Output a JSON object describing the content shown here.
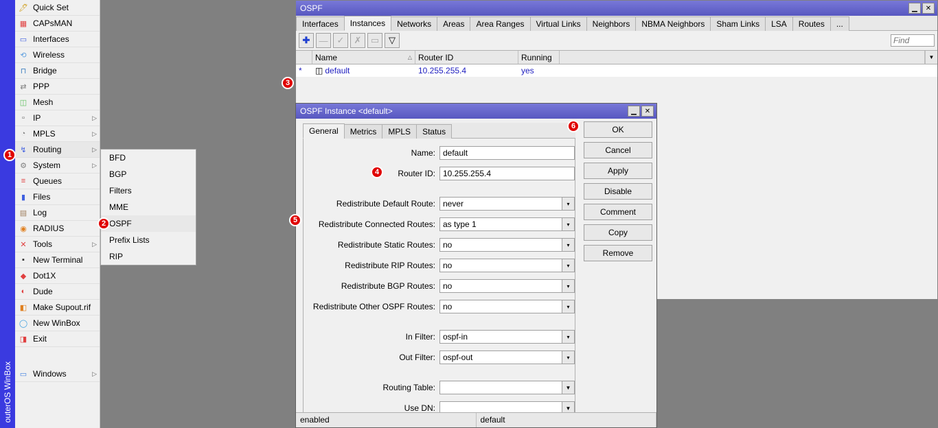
{
  "vertical_title": "outerOS  WinBox",
  "sidebar": [
    {
      "label": "Quick Set",
      "icon": "🖊",
      "color": "#d0a020"
    },
    {
      "label": "CAPsMAN",
      "icon": "▦",
      "color": "#e04040"
    },
    {
      "label": "Interfaces",
      "icon": "▭",
      "color": "#4060e0"
    },
    {
      "label": "Wireless",
      "icon": "⟲",
      "color": "#60a0e0"
    },
    {
      "label": "Bridge",
      "icon": "⊓",
      "color": "#4080c0"
    },
    {
      "label": "PPP",
      "icon": "⇄",
      "color": "#808080"
    },
    {
      "label": "Mesh",
      "icon": "◫",
      "color": "#60c060"
    },
    {
      "label": "IP",
      "icon": "▫",
      "arrow": true,
      "color": "#606060"
    },
    {
      "label": "MPLS",
      "icon": "◔",
      "arrow": true,
      "color": "#808080"
    },
    {
      "label": "Routing",
      "icon": "↯",
      "arrow": true,
      "sel": true,
      "color": "#4060e0"
    },
    {
      "label": "System",
      "icon": "⚙",
      "arrow": true,
      "color": "#808080"
    },
    {
      "label": "Queues",
      "icon": "≡",
      "color": "#e04040"
    },
    {
      "label": "Files",
      "icon": "▮",
      "color": "#4060e0"
    },
    {
      "label": "Log",
      "icon": "▤",
      "color": "#a08060"
    },
    {
      "label": "RADIUS",
      "icon": "◉",
      "color": "#e08020"
    },
    {
      "label": "Tools",
      "icon": "✕",
      "arrow": true,
      "color": "#e04040"
    },
    {
      "label": "New Terminal",
      "icon": "▪",
      "color": "#303030"
    },
    {
      "label": "Dot1X",
      "icon": "◆",
      "color": "#e04040"
    },
    {
      "label": "Dude",
      "icon": "◐",
      "color": "#e04040"
    },
    {
      "label": "Make Supout.rif",
      "icon": "◧",
      "color": "#e08020"
    },
    {
      "label": "New WinBox",
      "icon": "◯",
      "color": "#40a0e0"
    },
    {
      "label": "Exit",
      "icon": "◨",
      "color": "#e04040"
    }
  ],
  "sidebar_windows": {
    "label": "Windows",
    "icon": "▭",
    "arrow": true,
    "color": "#4080e0"
  },
  "submenu": [
    "BFD",
    "BGP",
    "Filters",
    "MME",
    "OSPF",
    "Prefix Lists",
    "RIP"
  ],
  "submenu_sel": "OSPF",
  "ospf": {
    "title": "OSPF",
    "tabs": [
      "Interfaces",
      "Instances",
      "Networks",
      "Areas",
      "Area Ranges",
      "Virtual Links",
      "Neighbors",
      "NBMA Neighbors",
      "Sham Links",
      "LSA",
      "Routes",
      "..."
    ],
    "active_tab": "Instances",
    "find_placeholder": "Find",
    "columns": [
      "Name",
      "Router ID",
      "Running"
    ],
    "row": {
      "name": "default",
      "router_id": "10.255.255.4",
      "running": "yes"
    }
  },
  "dlg": {
    "title": "OSPF Instance <default>",
    "tabs": [
      "General",
      "Metrics",
      "MPLS",
      "Status"
    ],
    "active_tab": "General",
    "buttons": [
      "OK",
      "Cancel",
      "Apply",
      "Disable",
      "Comment",
      "Copy",
      "Remove"
    ],
    "fields": {
      "name_lbl": "Name:",
      "name_val": "default",
      "rid_lbl": "Router ID:",
      "rid_val": "10.255.255.4",
      "rdr_lbl": "Redistribute Default Route:",
      "rdr_val": "never",
      "rcr_lbl": "Redistribute Connected Routes:",
      "rcr_val": "as type 1",
      "rsr_lbl": "Redistribute Static Routes:",
      "rsr_val": "no",
      "rrr_lbl": "Redistribute RIP Routes:",
      "rrr_val": "no",
      "rbr_lbl": "Redistribute BGP Routes:",
      "rbr_val": "no",
      "ror_lbl": "Redistribute Other OSPF Routes:",
      "ror_val": "no",
      "inf_lbl": "In Filter:",
      "inf_val": "ospf-in",
      "outf_lbl": "Out Filter:",
      "outf_val": "ospf-out",
      "rt_lbl": "Routing Table:",
      "rt_val": "",
      "dn_lbl": "Use DN:",
      "dn_val": ""
    },
    "status": [
      "enabled",
      "default"
    ]
  },
  "badges": {
    "1": "1",
    "2": "2",
    "3": "3",
    "4": "4",
    "5": "5",
    "6": "6"
  }
}
